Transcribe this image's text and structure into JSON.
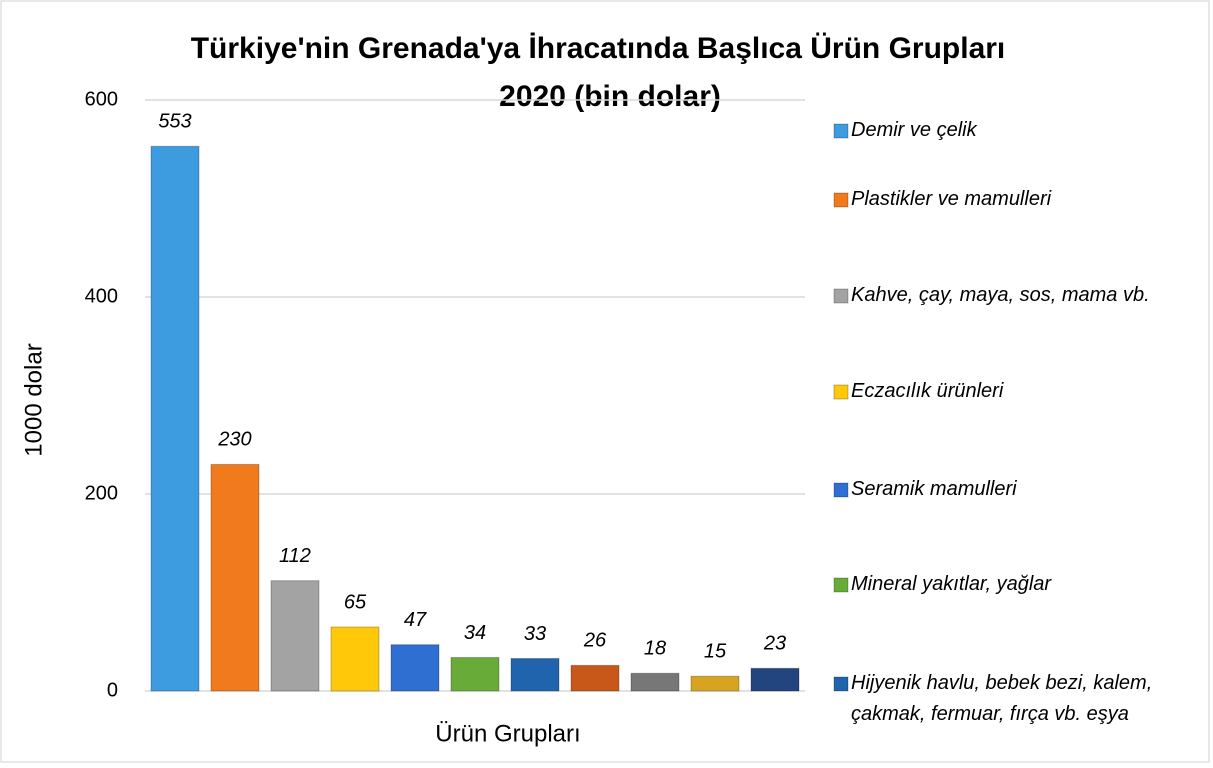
{
  "chart_data": {
    "type": "bar",
    "title": [
      "Türkiye'nin Grenada'ya İhracatında Başlıca Ürün Grupları",
      "2020 (bin dolar)"
    ],
    "xlabel": "Ürün Grupları",
    "ylabel": "1000 dolar",
    "categories": [
      "Demir ve çelik",
      "Plastikler ve mamulleri",
      "Kahve, çay, maya, sos, mama vb.",
      "Eczacılık ürünleri",
      "Seramik mamulleri",
      "Mineral yakıtlar, yağlar",
      "Hijyenik havlu, bebek bezi, kalem, çakmak, fermuar, fırça vb. eşya",
      null,
      null,
      null,
      null
    ],
    "values": [
      553,
      230,
      112,
      65,
      47,
      34,
      33,
      26,
      18,
      15,
      23
    ],
    "colors": [
      "#3d9be0",
      "#f07a1c",
      "#a3a3a3",
      "#ffc90a",
      "#2f6fd2",
      "#68ab38",
      "#1f64ad",
      "#c8581a",
      "#777777",
      "#d9a322",
      "#23457f"
    ],
    "ylim": [
      0,
      600
    ],
    "yticks": [
      0,
      200,
      400,
      600
    ],
    "grid": true,
    "legend": "right"
  }
}
